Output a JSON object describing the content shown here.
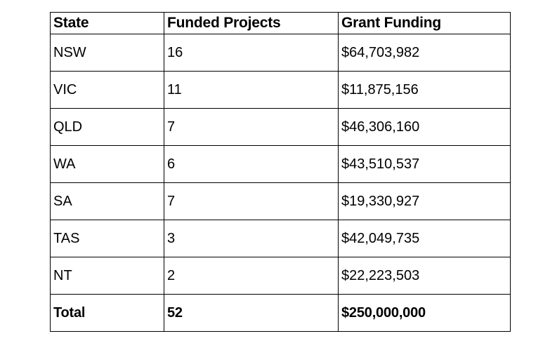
{
  "table": {
    "headers": [
      "State",
      "Funded Projects",
      "Grant Funding"
    ],
    "rows": [
      [
        "NSW",
        "16",
        "$64,703,982"
      ],
      [
        "VIC",
        "11",
        "$11,875,156"
      ],
      [
        "QLD",
        "7",
        "$46,306,160"
      ],
      [
        "WA",
        "6",
        "$43,510,537"
      ],
      [
        "SA",
        "7",
        "$19,330,927"
      ],
      [
        "TAS",
        "3",
        "$42,049,735"
      ],
      [
        "NT",
        "2",
        "$22,223,503"
      ]
    ],
    "total_row": [
      "Total",
      "52",
      "$250,000,000"
    ],
    "colors": {
      "border": "#000000",
      "text": "#000000",
      "background": "#ffffff"
    }
  }
}
